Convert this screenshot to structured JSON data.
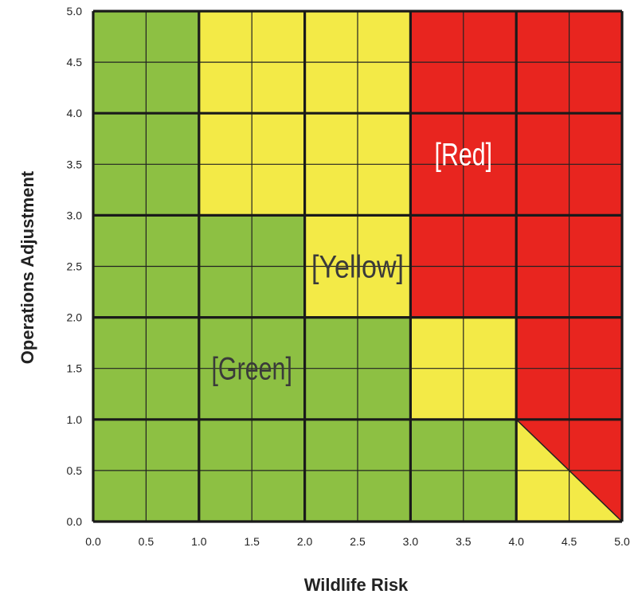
{
  "chart_data": {
    "type": "heatmap",
    "title": "",
    "xlabel": "Wildlife Risk",
    "ylabel": "Operations Adjustment",
    "xlim": [
      0,
      5
    ],
    "ylim": [
      0,
      5
    ],
    "x_ticks": [
      "0.0",
      "0.5",
      "1.0",
      "1.5",
      "2.0",
      "2.5",
      "3.0",
      "3.5",
      "4.0",
      "4.5",
      "5.0"
    ],
    "y_ticks": [
      "0.0",
      "0.5",
      "1.0",
      "1.5",
      "2.0",
      "2.5",
      "3.0",
      "3.5",
      "4.0",
      "4.5",
      "5.0"
    ],
    "major_grid_step": 1.0,
    "minor_grid_step": 0.5,
    "colors": {
      "green": "#8dc043",
      "yellow": "#f3ea47",
      "red": "#e8251f"
    },
    "zone_rows_top_to_bottom": [
      {
        "y_range": [
          4,
          5
        ],
        "zones": [
          "green",
          "yellow",
          "yellow",
          "red",
          "red"
        ]
      },
      {
        "y_range": [
          3,
          4
        ],
        "zones": [
          "green",
          "yellow",
          "yellow",
          "red",
          "red"
        ]
      },
      {
        "y_range": [
          2,
          3
        ],
        "zones": [
          "green",
          "green",
          "yellow",
          "red",
          "red"
        ]
      },
      {
        "y_range": [
          1,
          2
        ],
        "zones": [
          "green",
          "green",
          "green",
          "yellow",
          "red"
        ]
      },
      {
        "y_range": [
          0,
          1
        ],
        "zones": [
          "green",
          "green",
          "green",
          "green",
          "yellow/red diagonal"
        ]
      }
    ],
    "diagonal_cell": {
      "x_range": [
        4,
        5
      ],
      "y_range": [
        0,
        1
      ],
      "boundary": "line from (4.0, 1.0) to (5.0, 0.0)",
      "above_line": "red",
      "below_line": "yellow"
    },
    "annotations": [
      {
        "text": "[Red]",
        "x": 3.5,
        "y": 3.6,
        "color": "#ffffff"
      },
      {
        "text": "[Yellow]",
        "x": 2.5,
        "y": 2.5,
        "color": "#3a3a3a"
      },
      {
        "text": "[Green]",
        "x": 1.5,
        "y": 1.5,
        "color": "#3a3a3a"
      }
    ]
  }
}
